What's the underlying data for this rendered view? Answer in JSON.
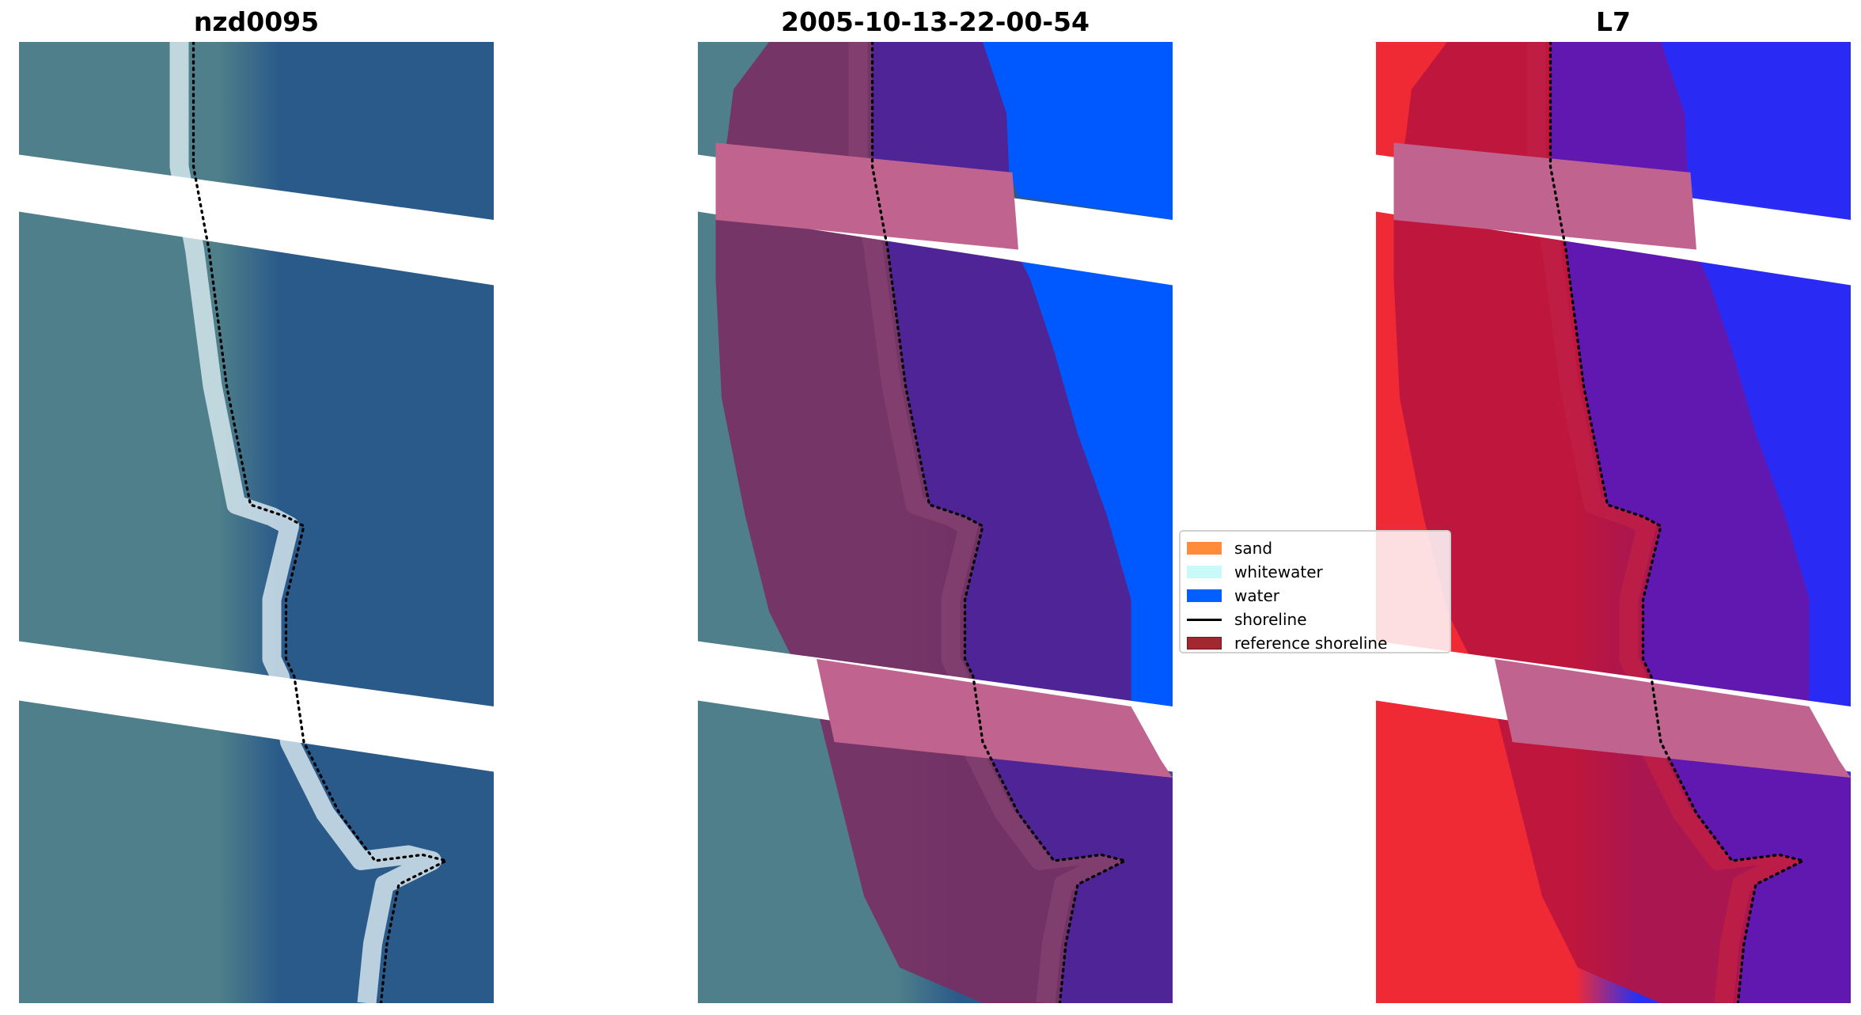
{
  "panels": [
    {
      "title": "nzd0095",
      "mode": "rgb"
    },
    {
      "title": "2005-10-13-22-00-54",
      "mode": "classified"
    },
    {
      "title": "L7",
      "mode": "index"
    }
  ],
  "legend": {
    "items": [
      {
        "label": "sand",
        "color": "#ff8c3a",
        "kind": "patch"
      },
      {
        "label": "whitewater",
        "color": "#c8fafa",
        "kind": "patch"
      },
      {
        "label": "water",
        "color": "#0060ff",
        "kind": "patch"
      },
      {
        "label": "shoreline",
        "color": "#000000",
        "kind": "line"
      },
      {
        "label": "reference shoreline",
        "color": "#a0282e",
        "kind": "patch"
      }
    ]
  }
}
